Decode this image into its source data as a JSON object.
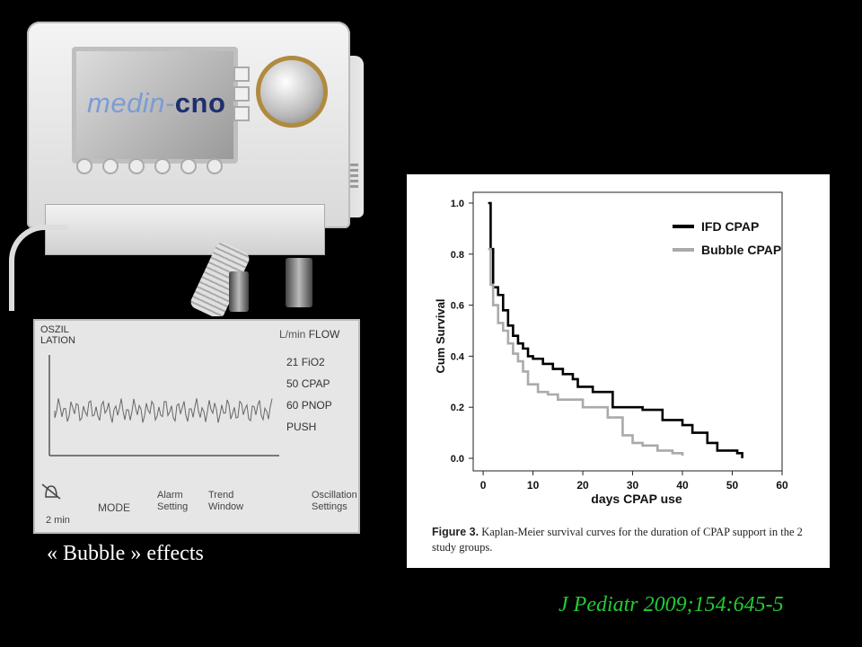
{
  "device": {
    "logo_light": "medin-",
    "logo_bold": "cno"
  },
  "display": {
    "mode_label_line1": "OSZIL",
    "mode_label_line2": "LATION",
    "flow_unit": "L/min",
    "flow_label": "FLOW",
    "rows": [
      {
        "value": "21",
        "label": "FiO2"
      },
      {
        "value": "50",
        "label": "CPAP"
      },
      {
        "value": "60",
        "label": "PNOP"
      },
      {
        "value": "",
        "label": "PUSH"
      }
    ],
    "alarm_time": "2 min",
    "bottom_buttons": [
      "MODE",
      "Alarm Setting",
      "Trend Window",
      "Oscillation Settings"
    ]
  },
  "bubble_caption": "« Bubble » effects",
  "citation": "J Pediatr 2009;154:645-5",
  "chart_data": {
    "type": "line",
    "step": true,
    "title": "",
    "xlabel": "days CPAP use",
    "ylabel": "Cum Survival",
    "xlim": [
      -2,
      60
    ],
    "ylim": [
      0.0,
      1.0
    ],
    "x_ticks": [
      0,
      10,
      20,
      30,
      40,
      50,
      60
    ],
    "y_ticks": [
      "0.0",
      "0.2",
      "0.4",
      "0.6",
      "0.8",
      "1.0"
    ],
    "legend_position": "top-right",
    "series": [
      {
        "name": "IFD CPAP",
        "color": "#000000",
        "points": [
          [
            1,
            1.0
          ],
          [
            1.5,
            0.82
          ],
          [
            2,
            0.67
          ],
          [
            3,
            0.64
          ],
          [
            4,
            0.58
          ],
          [
            5,
            0.52
          ],
          [
            6,
            0.48
          ],
          [
            7,
            0.45
          ],
          [
            8,
            0.43
          ],
          [
            9,
            0.4
          ],
          [
            10,
            0.39
          ],
          [
            12,
            0.37
          ],
          [
            14,
            0.35
          ],
          [
            16,
            0.33
          ],
          [
            18,
            0.31
          ],
          [
            19,
            0.28
          ],
          [
            22,
            0.26
          ],
          [
            26,
            0.2
          ],
          [
            32,
            0.19
          ],
          [
            36,
            0.15
          ],
          [
            40,
            0.13
          ],
          [
            42,
            0.1
          ],
          [
            45,
            0.06
          ],
          [
            47,
            0.03
          ],
          [
            51,
            0.02
          ],
          [
            52,
            0.0
          ]
        ]
      },
      {
        "name": "Bubble CPAP",
        "color": "#aaaaaa",
        "points": [
          [
            1,
            0.82
          ],
          [
            1.5,
            0.68
          ],
          [
            2,
            0.6
          ],
          [
            3,
            0.53
          ],
          [
            4,
            0.5
          ],
          [
            5,
            0.45
          ],
          [
            6,
            0.41
          ],
          [
            7,
            0.38
          ],
          [
            8,
            0.34
          ],
          [
            9,
            0.29
          ],
          [
            11,
            0.26
          ],
          [
            13,
            0.25
          ],
          [
            15,
            0.23
          ],
          [
            20,
            0.2
          ],
          [
            25,
            0.16
          ],
          [
            28,
            0.09
          ],
          [
            30,
            0.06
          ],
          [
            32,
            0.05
          ],
          [
            35,
            0.03
          ],
          [
            38,
            0.02
          ],
          [
            40,
            0.01
          ]
        ]
      }
    ]
  },
  "figure_caption": {
    "label": "Figure 3.",
    "text": "Kaplan-Meier survival curves for the duration of CPAP support in the 2 study groups."
  }
}
